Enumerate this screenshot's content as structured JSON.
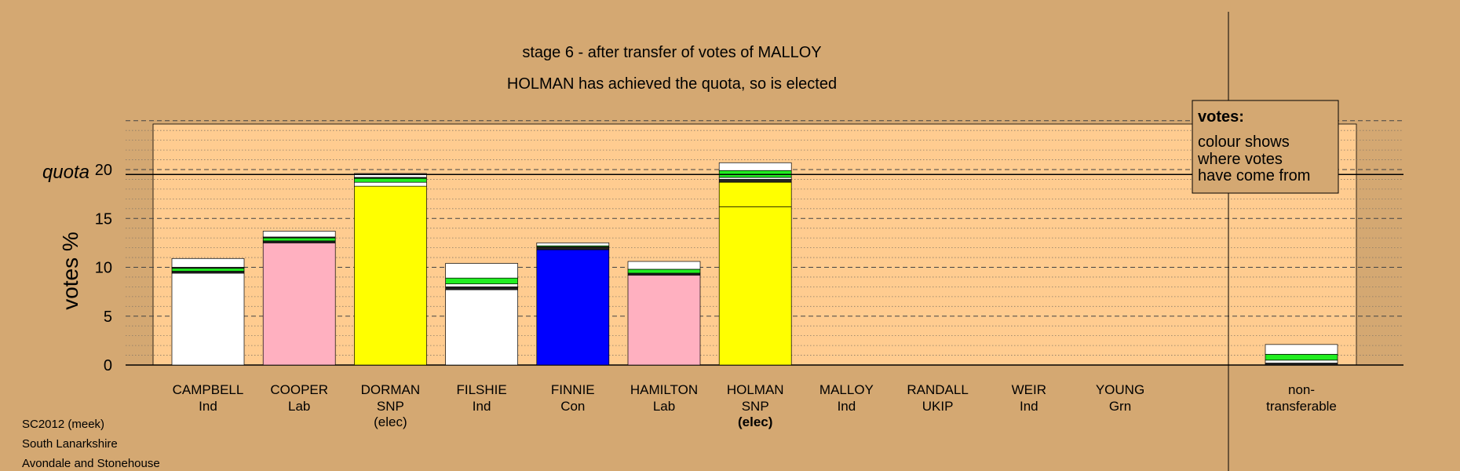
{
  "colors": {
    "background": "#d4a872",
    "plot_area": "#ffcc90",
    "Ind": "#ffffff",
    "Lab": "#ffb0c0",
    "SNP": "#ffff00",
    "Con": "#0000ff",
    "UKIP": "#800080",
    "Grn": "#22ee22",
    "other": "#202020"
  },
  "legend": {
    "title": "votes:",
    "lines": [
      "colour shows",
      "where votes",
      "have come from"
    ]
  },
  "footer": [
    "SC2012 (meek)",
    "South Lanarkshire",
    "Avondale and Stonehouse"
  ],
  "chart_data": {
    "type": "bar",
    "stacked": true,
    "title": "stage 6 - after transfer of votes of MALLOY",
    "subtitle": "HOLMAN has achieved the quota, so is elected",
    "ylabel": "votes %",
    "ylim": [
      0,
      25
    ],
    "yticks": [
      0,
      5,
      10,
      15,
      20
    ],
    "quota": 19.5,
    "quota_label": "quota",
    "grid": "dashed major lines at 5, dotted minor lines at 1",
    "legend_placement": "top-right",
    "categories": [
      {
        "name": "CAMPBELL",
        "party": "Ind",
        "status": "",
        "segments": [
          {
            "from": "Ind",
            "value": 9.4
          },
          {
            "from": "other",
            "value": 0.2
          },
          {
            "from": "Grn",
            "value": 0.3
          },
          {
            "from": "other",
            "value": 0.1
          },
          {
            "from": "Ind",
            "value": 0.9
          }
        ]
      },
      {
        "name": "COOPER",
        "party": "Lab",
        "status": "",
        "segments": [
          {
            "from": "Lab",
            "value": 12.5
          },
          {
            "from": "other",
            "value": 0.2
          },
          {
            "from": "Grn",
            "value": 0.3
          },
          {
            "from": "other",
            "value": 0.1
          },
          {
            "from": "Ind",
            "value": 0.6
          }
        ]
      },
      {
        "name": "DORMAN",
        "party": "SNP",
        "status": "(elec)",
        "segments": [
          {
            "from": "SNP",
            "value": 18.3
          },
          {
            "from": "Ind",
            "value": 0.4
          },
          {
            "from": "Grn",
            "value": 0.4
          },
          {
            "from": "other",
            "value": 0.1
          },
          {
            "from": "Ind",
            "value": 0.4
          }
        ]
      },
      {
        "name": "FILSHIE",
        "party": "Ind",
        "status": "",
        "segments": [
          {
            "from": "Ind",
            "value": 7.7
          },
          {
            "from": "other",
            "value": 0.3
          },
          {
            "from": "Ind",
            "value": 0.3
          },
          {
            "from": "Grn",
            "value": 0.6
          },
          {
            "from": "Ind",
            "value": 1.5
          }
        ]
      },
      {
        "name": "FINNIE",
        "party": "Con",
        "status": "",
        "segments": [
          {
            "from": "Con",
            "value": 11.8
          },
          {
            "from": "other",
            "value": 0.3
          },
          {
            "from": "Grn",
            "value": 0.1
          },
          {
            "from": "Ind",
            "value": 0.3
          }
        ]
      },
      {
        "name": "HAMILTON",
        "party": "Lab",
        "status": "",
        "segments": [
          {
            "from": "Lab",
            "value": 9.2
          },
          {
            "from": "other",
            "value": 0.2
          },
          {
            "from": "Grn",
            "value": 0.4
          },
          {
            "from": "Ind",
            "value": 0.8
          }
        ]
      },
      {
        "name": "HOLMAN",
        "party": "SNP",
        "status": "(elec)",
        "segments": [
          {
            "from": "SNP",
            "value": 16.2
          },
          {
            "from": "SNP",
            "value": 2.5
          },
          {
            "from": "other",
            "value": 0.3
          },
          {
            "from": "Ind",
            "value": 0.2
          },
          {
            "from": "Grn",
            "value": 0.7
          },
          {
            "from": "Ind",
            "value": 0.8
          }
        ]
      },
      {
        "name": "MALLOY",
        "party": "Ind",
        "status": "",
        "segments": []
      },
      {
        "name": "RANDALL",
        "party": "UKIP",
        "status": "",
        "segments": []
      },
      {
        "name": "WEIR",
        "party": "Ind",
        "status": "",
        "segments": []
      },
      {
        "name": "YOUNG",
        "party": "Grn",
        "status": "",
        "segments": []
      }
    ],
    "nontransferable": {
      "label_lines": [
        "non-",
        "transferable"
      ],
      "segments": [
        {
          "from": "other",
          "value": 0.2
        },
        {
          "from": "Ind",
          "value": 0.3
        },
        {
          "from": "Grn",
          "value": 0.6
        },
        {
          "from": "Ind",
          "value": 1.0
        }
      ]
    }
  }
}
